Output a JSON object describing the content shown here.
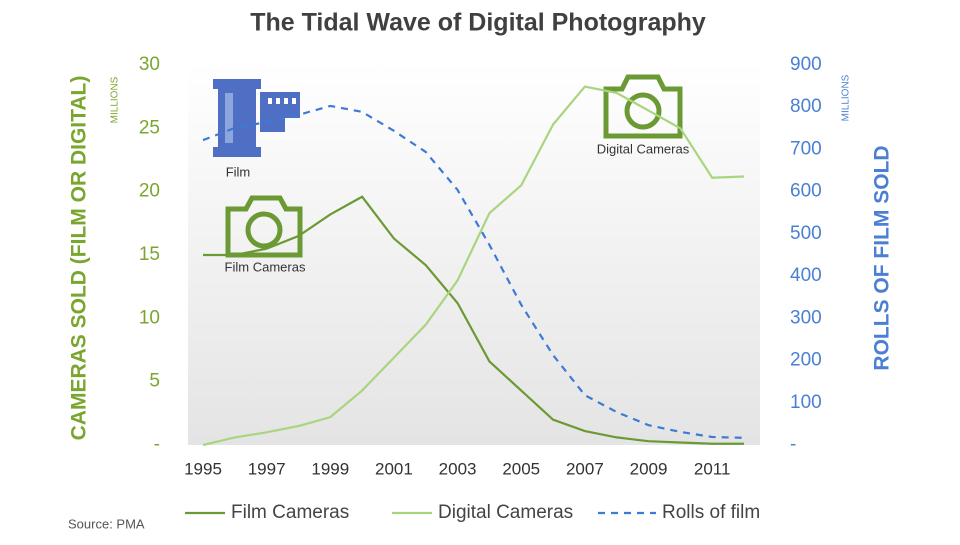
{
  "chart_data": {
    "type": "line",
    "title": "The Tidal Wave of Digital Photography",
    "y_label": "CAMERAS SOLD (FILM OR DIGITAL)",
    "y2_label": "ROLLS OF FILM SOLD",
    "y_unit": "MILLIONS",
    "y2_unit": "MILLIONS",
    "annotations": [
      "Film",
      "Film Cameras",
      "Digital Cameras"
    ],
    "source": "Source: PMA",
    "x": [
      1995,
      1996,
      1997,
      1998,
      1999,
      2000,
      2001,
      2002,
      2003,
      2004,
      2005,
      2006,
      2007,
      2008,
      2009,
      2010,
      2011,
      2012
    ],
    "xlim": [
      1995,
      2012
    ],
    "xticks": [
      1995,
      1997,
      1999,
      2001,
      2003,
      2005,
      2007,
      2009,
      2011
    ],
    "ylim": [
      0,
      30
    ],
    "yticks": [
      {
        "value": 0,
        "label": "-"
      },
      5,
      10,
      15,
      20,
      25,
      30
    ],
    "y2lim": [
      0,
      900
    ],
    "y2ticks": [
      {
        "value": 0,
        "label": "-"
      },
      100,
      200,
      300,
      400,
      500,
      600,
      700,
      800,
      900
    ],
    "series": [
      {
        "name": "Film Cameras",
        "color": "#6b9a34",
        "values": [
          15,
          15,
          15.5,
          16.5,
          18.2,
          19.6,
          16.3,
          14.2,
          11.2,
          6.6,
          4.3,
          2.0,
          1.1,
          0.6,
          0.3,
          0.2,
          0.1,
          0.1
        ]
      },
      {
        "name": "Digital Cameras",
        "color": "#a9d57f",
        "values": [
          0,
          0.6,
          1.0,
          1.5,
          2.2,
          4.3,
          6.9,
          9.5,
          13.0,
          18.3,
          20.5,
          25.3,
          28.3,
          27.8,
          26.4,
          25.0,
          21.1,
          21.2
        ]
      },
      {
        "name": "Rolls of film",
        "color": "#3d7ad6",
        "axis": "y2",
        "dashed": true,
        "values": [
          722,
          751,
          765,
          782,
          803,
          789,
          744,
          694,
          604,
          474,
          332,
          213,
          118,
          78,
          47,
          31,
          19,
          17
        ]
      }
    ]
  }
}
